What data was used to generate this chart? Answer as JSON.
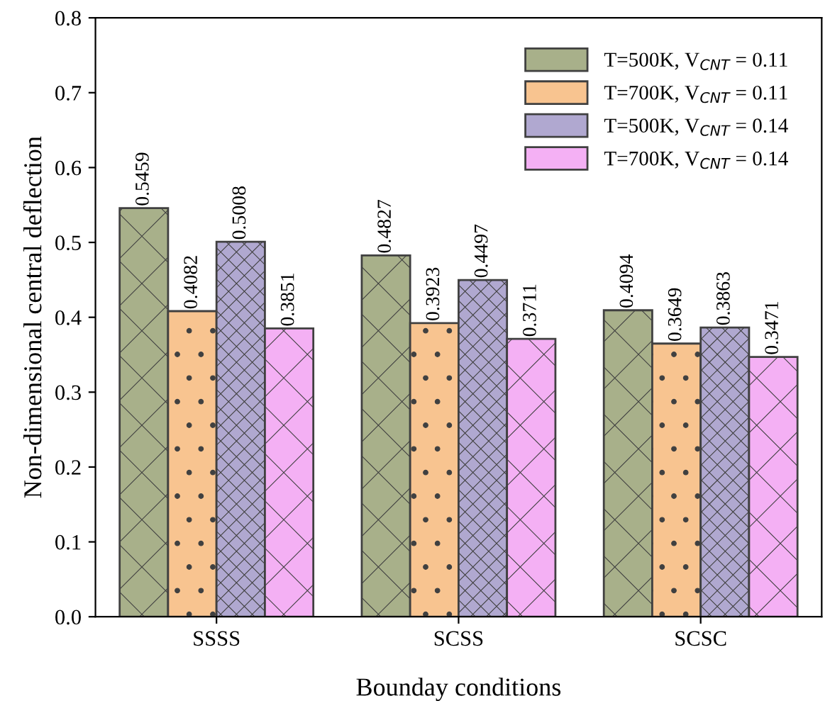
{
  "chart_data": {
    "type": "bar",
    "xlabel": "Bounday conditions",
    "ylabel": "Non-dimensional central deflection",
    "categories": [
      "SSSS",
      "SCSS",
      "SCSC"
    ],
    "series": [
      {
        "name": "T=500K, V$_{CNT}$ = 0.11",
        "color": "#a8b08a",
        "values": [
          0.5459,
          0.4827,
          0.4094
        ]
      },
      {
        "name": "T=700K, V$_{CNT}$ = 0.11",
        "color": "#f8c490",
        "values": [
          0.4082,
          0.3923,
          0.3649
        ]
      },
      {
        "name": "T=500K, V$_{CNT}$ = 0.14",
        "color": "#b0a8d0",
        "values": [
          0.5008,
          0.4497,
          0.3863
        ]
      },
      {
        "name": "T=700K, V$_{CNT}$ = 0.14",
        "color": "#f4b0f4",
        "values": [
          0.3851,
          0.3711,
          0.3471
        ]
      }
    ],
    "ylim": [
      0,
      0.8
    ],
    "yticks": [
      {
        "value": 0,
        "label": "0.0"
      },
      0.1,
      0.2,
      0.3,
      0.4,
      0.5,
      0.6,
      0.7,
      0.8
    ],
    "data_labels": true,
    "legend": "top right",
    "grid": false
  }
}
